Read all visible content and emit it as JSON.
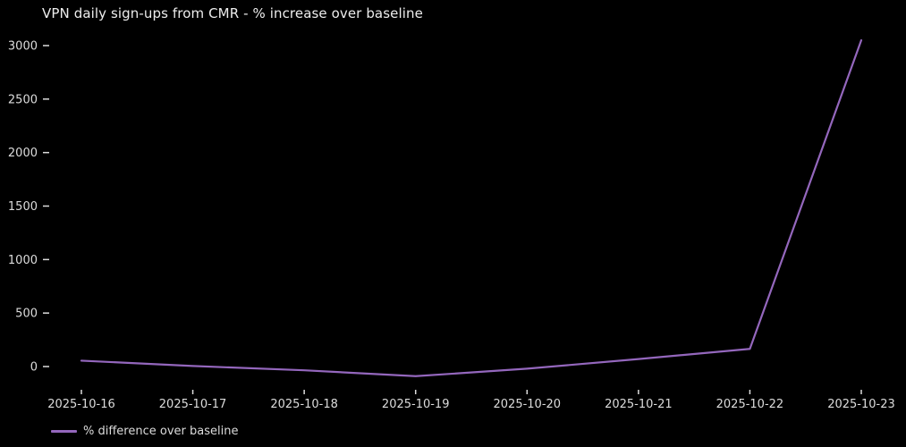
{
  "chart_data": {
    "type": "line",
    "title": "VPN daily sign-ups from CMR - % increase over baseline",
    "x": [
      "2025-10-16",
      "2025-10-17",
      "2025-10-18",
      "2025-10-19",
      "2025-10-20",
      "2025-10-21",
      "2025-10-22",
      "2025-10-23"
    ],
    "series": [
      {
        "name": "% difference over baseline",
        "values": [
          55,
          5,
          -35,
          -90,
          -20,
          70,
          165,
          3050
        ],
        "color": "#9467bd"
      }
    ],
    "xlabel": "",
    "ylabel": "",
    "yticks": [
      0,
      500,
      1000,
      1500,
      2000,
      2500,
      3000
    ],
    "ylim": [
      -270,
      3180
    ],
    "grid": false,
    "legend_position": "lower left, below axis",
    "background_color": "#000000",
    "text_color": "#dcdcdc",
    "title_color": "#ededed"
  },
  "legend": {
    "label": "% difference over baseline",
    "swatch_color": "#9467bd"
  }
}
